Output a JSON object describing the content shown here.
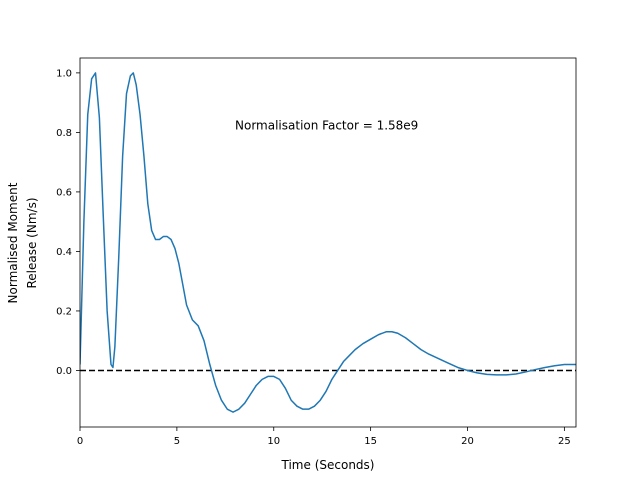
{
  "chart_data": {
    "type": "line",
    "title": "",
    "xlabel": "Time (Seconds)",
    "ylabel_lines": [
      "Normalised Moment",
      "Release (Nm/s)"
    ],
    "xlim": [
      0,
      25.6
    ],
    "ylim": [
      -0.19,
      1.05
    ],
    "xticks": [
      0,
      5,
      10,
      15,
      20,
      25
    ],
    "yticks": [
      0.0,
      0.2,
      0.4,
      0.6,
      0.8,
      1.0
    ],
    "xtick_labels": [
      "0",
      "5",
      "10",
      "15",
      "20",
      "25"
    ],
    "ytick_labels": [
      "0.0",
      "0.2",
      "0.4",
      "0.6",
      "0.8",
      "1.0"
    ],
    "grid": false,
    "annotation": {
      "text": "Normalisation Factor = 1.58e9",
      "x": 8.0,
      "y": 0.81
    },
    "reference_line": {
      "y": 0.0,
      "style": "dashed",
      "color": "#000000"
    },
    "series": [
      {
        "color": "#1f77b4",
        "x": [
          0.0,
          0.2,
          0.4,
          0.6,
          0.8,
          1.0,
          1.2,
          1.4,
          1.6,
          1.7,
          1.8,
          2.0,
          2.2,
          2.4,
          2.6,
          2.75,
          2.9,
          3.1,
          3.3,
          3.5,
          3.7,
          3.9,
          4.1,
          4.3,
          4.5,
          4.7,
          4.9,
          5.1,
          5.3,
          5.5,
          5.8,
          6.1,
          6.4,
          6.7,
          7.0,
          7.3,
          7.6,
          7.9,
          8.2,
          8.5,
          8.8,
          9.1,
          9.4,
          9.7,
          10.0,
          10.3,
          10.6,
          10.9,
          11.2,
          11.5,
          11.8,
          12.1,
          12.4,
          12.7,
          13.0,
          13.3,
          13.6,
          13.9,
          14.2,
          14.6,
          15.0,
          15.4,
          15.8,
          16.1,
          16.4,
          16.8,
          17.2,
          17.6,
          18.0,
          18.5,
          19.0,
          19.5,
          20.0,
          20.5,
          21.0,
          21.5,
          22.0,
          22.5,
          23.0,
          23.5,
          24.0,
          24.5,
          25.0,
          25.6
        ],
        "y": [
          0.02,
          0.5,
          0.86,
          0.98,
          1.0,
          0.85,
          0.52,
          0.2,
          0.02,
          0.01,
          0.08,
          0.38,
          0.72,
          0.93,
          0.99,
          1.0,
          0.96,
          0.86,
          0.72,
          0.56,
          0.47,
          0.44,
          0.44,
          0.45,
          0.45,
          0.44,
          0.41,
          0.36,
          0.29,
          0.22,
          0.17,
          0.15,
          0.1,
          0.02,
          -0.05,
          -0.1,
          -0.13,
          -0.14,
          -0.13,
          -0.11,
          -0.08,
          -0.05,
          -0.03,
          -0.02,
          -0.02,
          -0.03,
          -0.06,
          -0.1,
          -0.12,
          -0.13,
          -0.13,
          -0.12,
          -0.1,
          -0.07,
          -0.03,
          0.0,
          0.03,
          0.05,
          0.07,
          0.09,
          0.105,
          0.12,
          0.13,
          0.13,
          0.125,
          0.11,
          0.09,
          0.07,
          0.055,
          0.04,
          0.025,
          0.01,
          0.0,
          -0.008,
          -0.013,
          -0.015,
          -0.015,
          -0.012,
          -0.005,
          0.003,
          0.01,
          0.016,
          0.02,
          0.02
        ]
      }
    ]
  }
}
